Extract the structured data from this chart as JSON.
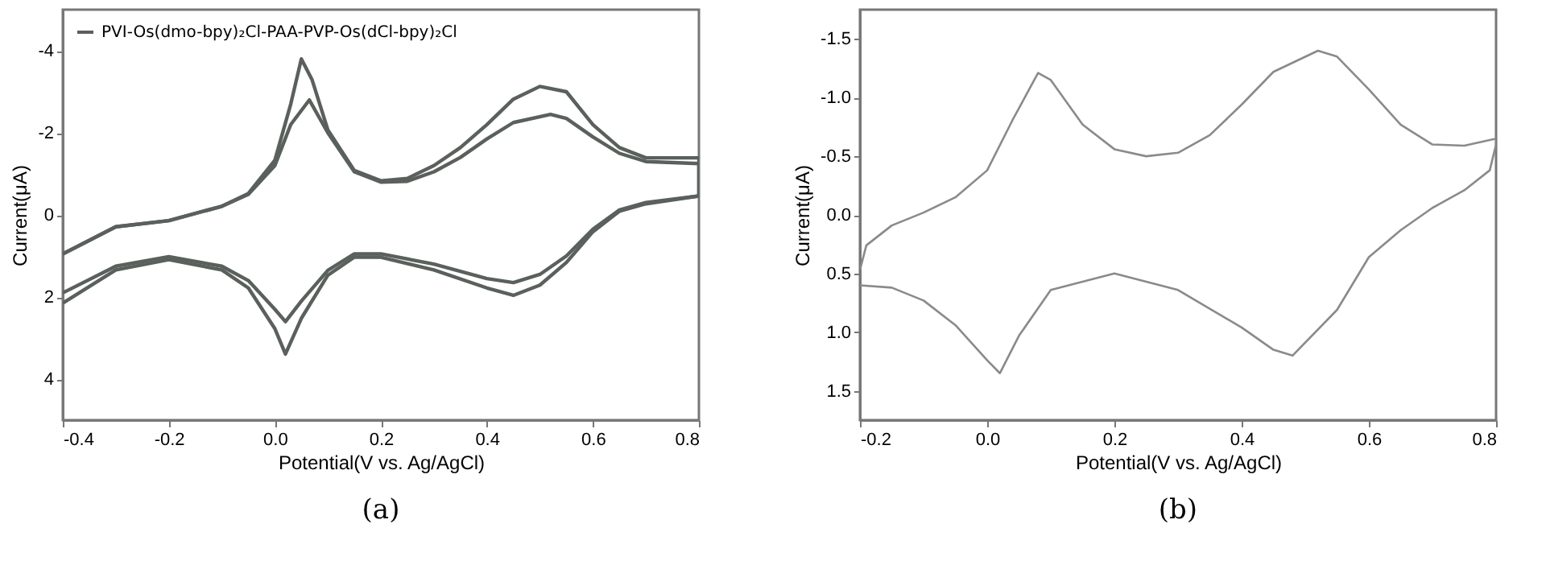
{
  "chart_data": [
    {
      "type": "line",
      "xlabel": "Potential(V vs. Ag/AgCl)",
      "ylabel": "Current(μA)",
      "xlim": [
        -0.4,
        0.8
      ],
      "xticks": [
        -0.4,
        -0.2,
        {
          "value": 0,
          "label": "0.0"
        },
        0.2,
        0.4,
        0.6,
        0.8
      ],
      "ylim": [
        5,
        -5
      ],
      "yticks": [
        -4,
        -2,
        0,
        2,
        4
      ],
      "grid": false,
      "legend": "top left",
      "annotations": [
        "(a)"
      ],
      "series": [
        {
          "name": "PVI-Os(dmo-bpy)₂Cl-PAA-PVP-Os(dCl-bpy)₂Cl",
          "color": "#5a605c",
          "x": [
            -0.4,
            -0.3,
            -0.2,
            -0.1,
            -0.05,
            0.0,
            0.03,
            0.05,
            0.07,
            0.1,
            0.15,
            0.2,
            0.25,
            0.3,
            0.35,
            0.4,
            0.45,
            0.5,
            0.55,
            0.6,
            0.65,
            0.7,
            0.8,
            0.8,
            0.7,
            0.65,
            0.6,
            0.55,
            0.5,
            0.45,
            0.4,
            0.3,
            0.2,
            0.15,
            0.1,
            0.05,
            0.02,
            0.0,
            -0.05,
            -0.1,
            -0.2,
            -0.3,
            -0.4
          ],
          "values": [
            0.95,
            0.29,
            0.14,
            -0.21,
            -0.52,
            -1.33,
            -2.7,
            -3.8,
            -3.3,
            -2.07,
            -1.08,
            -0.83,
            -0.89,
            -1.2,
            -1.64,
            -2.2,
            -2.82,
            -3.13,
            -3.0,
            -2.2,
            -1.64,
            -1.39,
            -1.39,
            -0.46,
            -0.27,
            -0.09,
            0.41,
            1.16,
            1.71,
            1.96,
            1.78,
            1.34,
            1.03,
            1.03,
            1.47,
            2.52,
            3.39,
            2.77,
            1.78,
            1.34,
            1.09,
            1.34,
            2.15
          ]
        },
        {
          "color": "#5a605c",
          "x": [
            -0.4,
            -0.3,
            -0.2,
            -0.1,
            -0.05,
            0.0,
            0.03,
            0.065,
            0.1,
            0.15,
            0.2,
            0.25,
            0.3,
            0.35,
            0.4,
            0.45,
            0.52,
            0.55,
            0.6,
            0.65,
            0.7,
            0.8,
            0.8,
            0.7,
            0.65,
            0.6,
            0.55,
            0.5,
            0.45,
            0.4,
            0.3,
            0.2,
            0.15,
            0.1,
            0.05,
            0.02,
            0.0,
            -0.05,
            -0.1,
            -0.2,
            -0.3,
            -0.4
          ],
          "values": [
            0.95,
            0.29,
            0.14,
            -0.21,
            -0.5,
            -1.2,
            -2.2,
            -2.8,
            -2.0,
            -1.05,
            -0.8,
            -0.82,
            -1.05,
            -1.4,
            -1.85,
            -2.25,
            -2.45,
            -2.35,
            -1.9,
            -1.5,
            -1.3,
            -1.25,
            -0.46,
            -0.3,
            -0.12,
            0.35,
            1.0,
            1.45,
            1.65,
            1.55,
            1.2,
            0.95,
            0.95,
            1.35,
            2.1,
            2.6,
            2.3,
            1.6,
            1.25,
            1.02,
            1.25,
            1.9
          ]
        }
      ]
    },
    {
      "type": "line",
      "xlabel": "Potential(V vs. Ag/AgCl)",
      "ylabel": "Current(μA)",
      "xlim": [
        -0.2,
        0.8
      ],
      "xticks": [
        -0.2,
        {
          "value": 0,
          "label": "0.0"
        },
        0.2,
        0.4,
        0.6,
        0.8
      ],
      "ylim": [
        1.75,
        -1.75
      ],
      "yticks": [
        {
          "value": -1.5,
          "label": "-1.5"
        },
        {
          "value": -1,
          "label": "-1.0"
        },
        {
          "value": -0.5,
          "label": "-0.5"
        },
        {
          "value": 0,
          "label": "0.0"
        },
        {
          "value": 0.5,
          "label": "0.5"
        },
        {
          "value": 1,
          "label": "1.0"
        },
        {
          "value": 1.5,
          "label": "1.5"
        }
      ],
      "grid": false,
      "annotations": [
        "(b)"
      ],
      "series": [
        {
          "color": "#8a8a8a",
          "x": [
            -0.2,
            -0.19,
            -0.15,
            -0.1,
            -0.05,
            0.0,
            0.04,
            0.08,
            0.1,
            0.15,
            0.2,
            0.25,
            0.3,
            0.35,
            0.4,
            0.45,
            0.52,
            0.55,
            0.6,
            0.65,
            0.7,
            0.75,
            0.8,
            0.8,
            0.79,
            0.75,
            0.7,
            0.65,
            0.6,
            0.55,
            0.48,
            0.45,
            0.4,
            0.3,
            0.2,
            0.1,
            0.05,
            0.02,
            0.0,
            -0.05,
            -0.1,
            -0.15,
            -0.2
          ],
          "values": [
            0.47,
            0.26,
            0.09,
            -0.02,
            -0.15,
            -0.38,
            -0.81,
            -1.21,
            -1.15,
            -0.77,
            -0.56,
            -0.5,
            -0.53,
            -0.68,
            -0.94,
            -1.22,
            -1.4,
            -1.35,
            -1.07,
            -0.77,
            -0.6,
            -0.59,
            -0.65,
            -0.6,
            -0.38,
            -0.21,
            -0.06,
            0.13,
            0.36,
            0.81,
            1.2,
            1.15,
            0.96,
            0.64,
            0.5,
            0.64,
            1.03,
            1.35,
            1.24,
            0.94,
            0.73,
            0.62,
            0.6
          ]
        }
      ]
    }
  ]
}
